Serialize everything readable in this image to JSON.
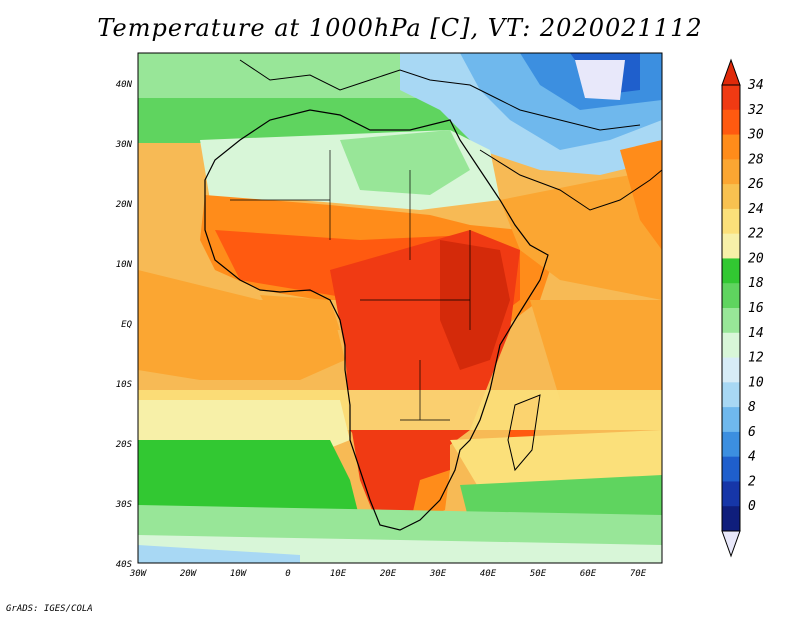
{
  "title": "Temperature at 1000hPa [C], VT: 2020021112",
  "credit": "GrADS: IGES/COLA",
  "map": {
    "lon_labels": [
      "30W",
      "20W",
      "10W",
      "0",
      "10E",
      "20E",
      "30E",
      "40E",
      "50E",
      "60E",
      "70E"
    ],
    "lat_labels": [
      "40N",
      "30N",
      "20N",
      "10N",
      "EQ",
      "10S",
      "20S",
      "30S",
      "40S"
    ]
  },
  "colorbar": {
    "labels": [
      "34",
      "32",
      "30",
      "28",
      "26",
      "24",
      "22",
      "20",
      "18",
      "16",
      "14",
      "12",
      "10",
      "8",
      "6",
      "4",
      "2",
      "0"
    ],
    "colors": [
      "#f03a13",
      "#ff5a10",
      "#ff8c1a",
      "#fba632",
      "#f8c150",
      "#fbe07a",
      "#f7f0a8",
      "#32c832",
      "#5fd45f",
      "#98e698",
      "#d8f6d8",
      "#d7ecf7",
      "#a8d8f4",
      "#6fb8ed",
      "#3c8fe0",
      "#1f5fcc",
      "#1636a8",
      "#0f1e7c"
    ],
    "top_arrow_color": "#e02a0a",
    "bottom_arrow_color": "#e8e8fa"
  }
}
